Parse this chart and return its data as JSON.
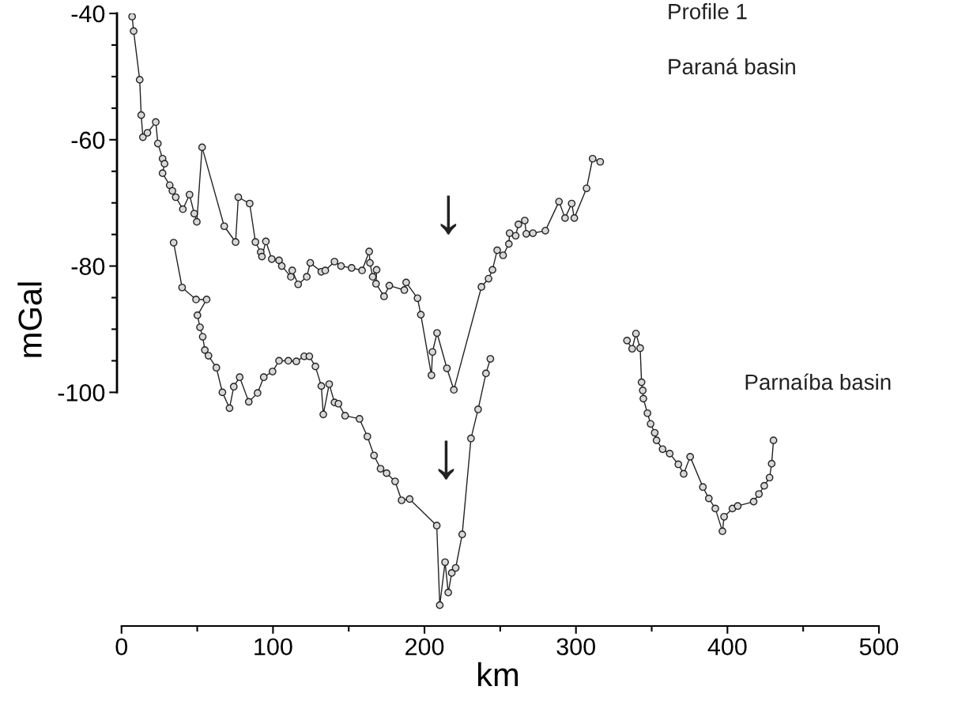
{
  "chart_data": {
    "type": "line",
    "xlabel": "km",
    "ylabel": "mGal",
    "xlim": [
      -3,
      500
    ],
    "ylim": [
      -137,
      -40
    ],
    "xticks": [
      0,
      {
        "value": 50,
        "label": null
      },
      100,
      {
        "value": 150,
        "label": null
      },
      200,
      {
        "value": 250,
        "label": null
      },
      300,
      {
        "value": 350,
        "label": null
      },
      400,
      {
        "value": 450,
        "label": null
      },
      500
    ],
    "yticks": [
      -40,
      {
        "value": -45,
        "label": null
      },
      {
        "value": -50,
        "label": null
      },
      {
        "value": -55,
        "label": null
      },
      -60,
      {
        "value": -65,
        "label": null
      },
      {
        "value": -70,
        "label": null
      },
      {
        "value": -75,
        "label": null
      },
      -80,
      {
        "value": -85,
        "label": null
      },
      {
        "value": -90,
        "label": null
      },
      {
        "value": -95,
        "label": null
      },
      -100
    ],
    "marker": "circle",
    "line_style": "solid",
    "grid": false,
    "legend": false,
    "series": [
      {
        "color": "#222222",
        "x": [
          7,
          8,
          12,
          13,
          14.1,
          17.1,
          22.6,
          24.0,
          27.1,
          28.4,
          27.1,
          31.8,
          33.6,
          35.8,
          40.5,
          44.9,
          48.0,
          49.7,
          53.2,
          67.8,
          75.3,
          77.1,
          84.6,
          88.4,
          91.9,
          92.7,
          95.3,
          99.2,
          104.0,
          105.8,
          111.8,
          112.7,
          116.6,
          122.3,
          124.6,
          131.9,
          134.5,
          140.6,
          144.9,
          151.9,
          158.8,
          163.5,
          164.0,
          165.8,
          168.4,
          168.0,
          173.3,
          176.8,
          186.7,
          187.9,
          195.4,
          197.6,
          204.6,
          205.3,
          208.3,
          214.8,
          219.4,
          237.6,
          242.3,
          244.9,
          248.0,
          251.9,
          255.7,
          256.2,
          260.2,
          262.0,
          266.2,
          267.2,
          271.6,
          279.8,
          288.8,
          292.8,
          297.2,
          298.9,
          307.0,
          311,
          316
        ],
        "values": [
          -40.5,
          -42.8,
          -50.5,
          -56.1,
          -59.6,
          -58.9,
          -57.2,
          -60.6,
          -63.0,
          -63.8,
          -65.3,
          -67.2,
          -68.1,
          -69.1,
          -71.0,
          -68.7,
          -71.7,
          -73.0,
          -61.2,
          -73.7,
          -76.2,
          -69.1,
          -70.1,
          -76.2,
          -77.8,
          -78.5,
          -76.1,
          -78.9,
          -79.1,
          -80.0,
          -81.7,
          -80.7,
          -82.9,
          -81.7,
          -79.5,
          -80.9,
          -80.7,
          -79.3,
          -80.0,
          -80.3,
          -80.7,
          -77.7,
          -79.5,
          -81.7,
          -80.6,
          -82.8,
          -84.8,
          -83.1,
          -83.8,
          -82.6,
          -85.1,
          -87.7,
          -97.3,
          -93.6,
          -90.6,
          -96.2,
          -99.6,
          -83.3,
          -82.0,
          -80.6,
          -77.5,
          -78.3,
          -76.5,
          -74.8,
          -75.2,
          -73.4,
          -72.8,
          -74.9,
          -74.8,
          -74.4,
          -69.8,
          -72.4,
          -70.1,
          -72.4,
          -67.7,
          -63.0,
          -63.5
        ]
      },
      {
        "color": "#222222",
        "x": [
          34.4,
          40.0,
          49.2,
          56.2,
          50.1,
          51.8,
          53.6,
          55.0,
          57.4,
          62.6,
          66.6,
          71.3,
          74.1,
          78.0,
          84.0,
          89.8,
          93.9,
          99.7,
          104.0,
          110.1,
          115.4,
          120.6,
          124.0,
          128.0,
          131.9,
          133.2,
          137.1,
          140.6,
          143.2,
          147.6,
          157.1,
          162.3,
          166.7,
          171.0,
          175.0,
          180.6,
          184.9,
          190.2,
          208.1,
          210.1,
          213.6,
          215.7,
          218.0,
          220.6,
          224.9,
          230.7,
          235.4,
          240.6,
          243.5,
          290,
          333.7,
          337.1,
          339.6,
          342.4,
          343.3,
          344.1,
          344.5,
          347.2,
          349.3,
          352.0,
          353.2,
          357.2,
          361.9,
          367.6,
          371.1,
          375.4,
          383.8,
          387.7,
          392.0,
          396.7,
          397.8,
          403.3,
          406.8,
          417.3,
          420.8,
          424.3,
          427.8,
          429.2,
          430.4
        ],
        "values": [
          -76.3,
          -83.4,
          -85.3,
          -85.3,
          -87.8,
          -89.7,
          -91.2,
          -93.3,
          -94.2,
          -96.1,
          -100.0,
          -102.5,
          -99.1,
          -97.6,
          -101.5,
          -100.1,
          -97.6,
          -96.7,
          -95.0,
          -95.0,
          -95.1,
          -94.3,
          -94.3,
          -95.9,
          -99.0,
          -103.5,
          -98.7,
          -101.6,
          -101.8,
          -103.7,
          -104.2,
          -107.0,
          -110.0,
          -112.1,
          -112.8,
          -114.1,
          -117.1,
          -116.9,
          -121.1,
          -133.7,
          -126.9,
          -131.7,
          -128.6,
          -127.8,
          -122.5,
          -107.3,
          -102.7,
          -97.0,
          -94.7,
          null,
          -91.8,
          -93.1,
          -90.7,
          -93.0,
          -98.4,
          -99.7,
          -101.0,
          -103.3,
          -105.0,
          -106.4,
          -107.6,
          -109.0,
          -109.7,
          -111.4,
          -112.9,
          -110.2,
          -115.0,
          -116.8,
          -118.4,
          -122.0,
          -119.7,
          -118.4,
          -118.0,
          -117.3,
          -116.1,
          -114.8,
          -113.5,
          -111.3,
          -107.6
        ]
      }
    ],
    "annotations": [
      "Profile 1",
      "Paraná basin",
      "Parnaíba basin",
      "↓",
      "↓"
    ]
  }
}
